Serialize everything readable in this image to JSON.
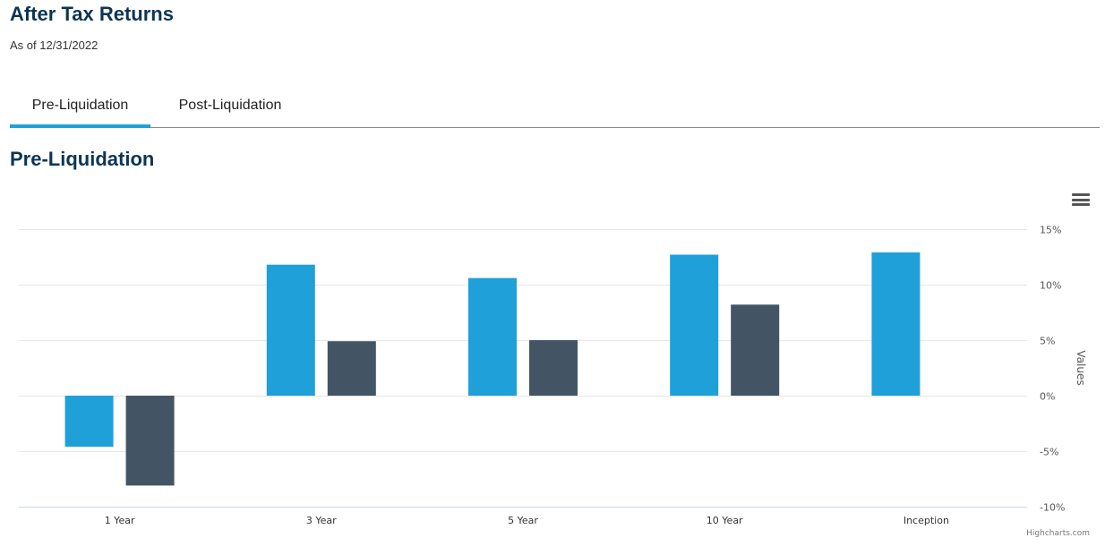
{
  "page": {
    "title": "After Tax Returns",
    "as_of": "As of 12/31/2022"
  },
  "tabs": [
    {
      "label": "Pre-Liquidation",
      "active": true
    },
    {
      "label": "Post-Liquidation",
      "active": false
    }
  ],
  "section": {
    "title": "Pre-Liquidation"
  },
  "chart_data": {
    "type": "bar",
    "title": "",
    "xlabel": "",
    "ylabel": "Values",
    "categories": [
      "1 Year",
      "3 Year",
      "5 Year",
      "10 Year",
      "Inception"
    ],
    "series": [
      {
        "color": "#1fa0d9",
        "values": [
          -4.6,
          11.8,
          10.6,
          12.7,
          12.9
        ]
      },
      {
        "color": "#435565",
        "values": [
          -8.1,
          4.9,
          5.0,
          8.2,
          null
        ]
      }
    ],
    "ylim": [
      -10,
      15
    ],
    "yticks": [
      -10,
      -5,
      0,
      5,
      10,
      15
    ],
    "ytick_labels": [
      "-10%",
      "-5%",
      "0%",
      "5%",
      "10%",
      "15%"
    ],
    "y_axis_side": "right",
    "grid": true,
    "credits": "Highcharts.com"
  },
  "icons": {
    "chart_menu": "hamburger-menu-icon"
  }
}
